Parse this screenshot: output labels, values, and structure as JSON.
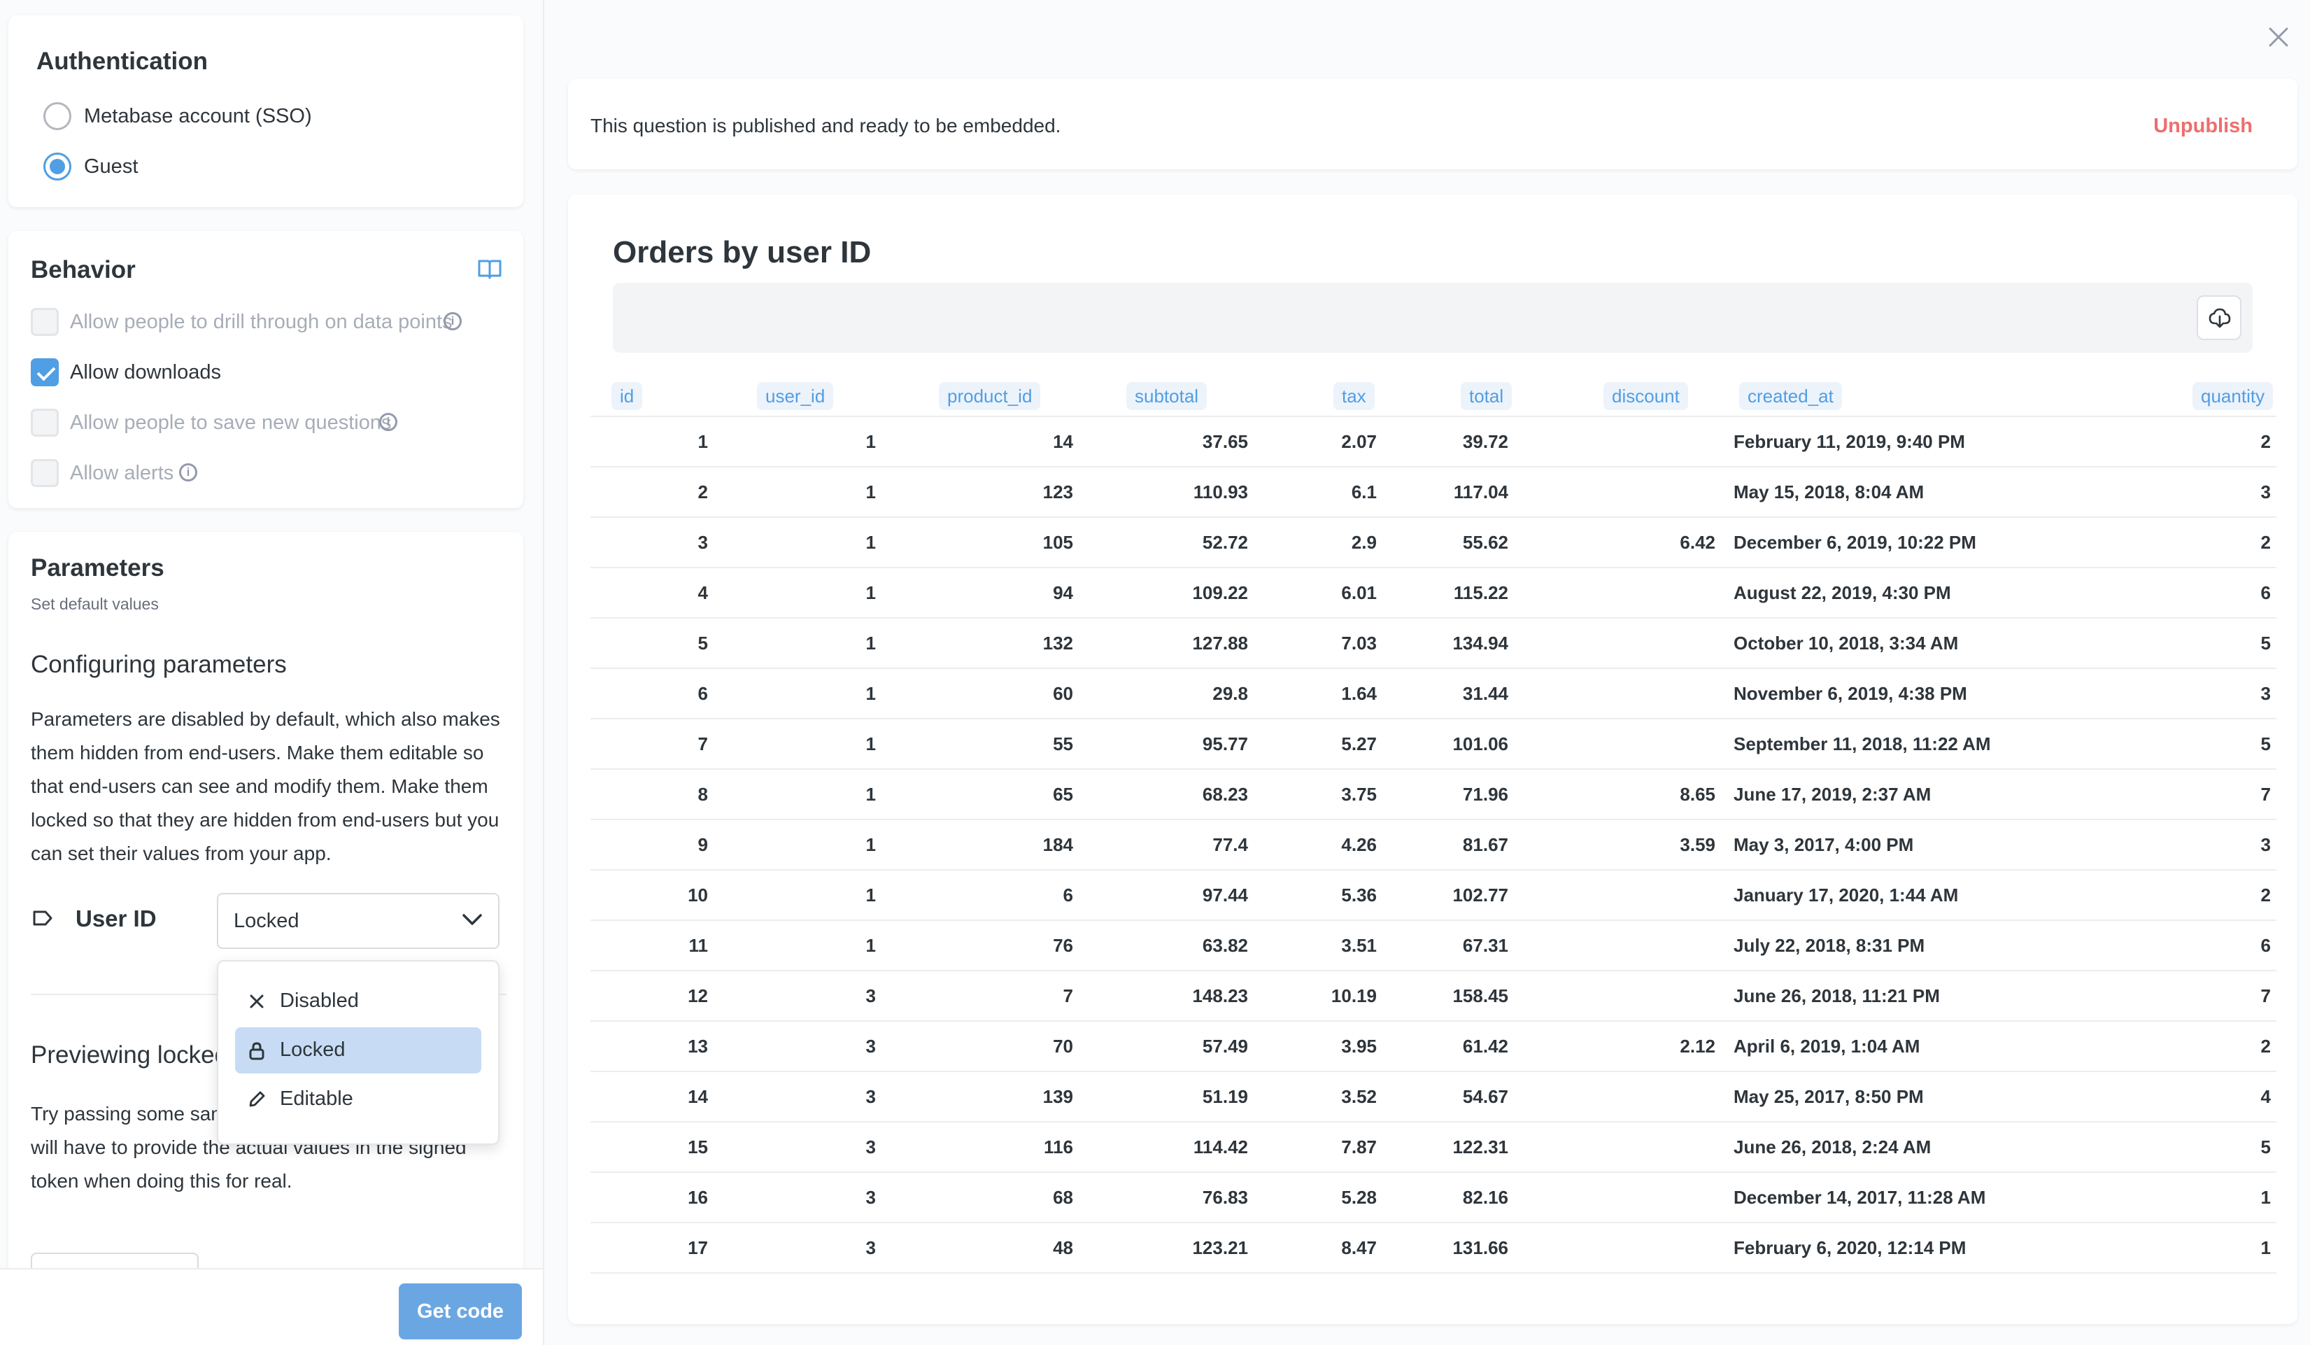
{
  "sidebar": {
    "authentication": {
      "title": "Authentication",
      "options": [
        {
          "label": "Metabase account (SSO)",
          "selected": false
        },
        {
          "label": "Guest",
          "selected": true
        }
      ]
    },
    "behavior": {
      "title": "Behavior",
      "options": [
        {
          "label": "Allow people to drill through on data points",
          "checked": false,
          "disabled": true
        },
        {
          "label": "Allow downloads",
          "checked": true,
          "disabled": false
        },
        {
          "label": "Allow people to save new questions",
          "checked": false,
          "disabled": true
        },
        {
          "label": "Allow alerts",
          "checked": false,
          "disabled": true
        }
      ]
    },
    "parameters": {
      "title": "Parameters",
      "subtitle": "Set default values",
      "configuring_heading": "Configuring parameters",
      "configuring_text": "Parameters are disabled by default, which also makes them hidden from end-users. Make them editable so that end-users can see and modify them. Make them locked so that they are hidden from end-users but you can set their values from your app.",
      "param_name": "User ID",
      "param_value": "Locked",
      "dropdown_options": [
        {
          "label": "Disabled",
          "icon": "close-icon",
          "selected": false
        },
        {
          "label": "Locked",
          "icon": "lock-icon",
          "selected": true
        },
        {
          "label": "Editable",
          "icon": "pencil-icon",
          "selected": false
        }
      ],
      "previewing_heading": "Previewing locked",
      "previewing_text": "Try passing some samp parameters here. Your server will have to provide the actual values in the signed token when doing this for real."
    },
    "footer": {
      "get_code_label": "Get code"
    }
  },
  "publish_bar": {
    "text": "This question is published and ready to be embedded.",
    "unpublish_label": "Unpublish"
  },
  "preview": {
    "title": "Orders by user ID",
    "columns": [
      "id",
      "user_id",
      "product_id",
      "subtotal",
      "tax",
      "total",
      "discount",
      "created_at",
      "quantity"
    ],
    "rows": [
      [
        "1",
        "1",
        "14",
        "37.65",
        "2.07",
        "39.72",
        "",
        "February 11, 2019, 9:40 PM",
        "2"
      ],
      [
        "2",
        "1",
        "123",
        "110.93",
        "6.1",
        "117.04",
        "",
        "May 15, 2018, 8:04 AM",
        "3"
      ],
      [
        "3",
        "1",
        "105",
        "52.72",
        "2.9",
        "55.62",
        "6.42",
        "December 6, 2019, 10:22 PM",
        "2"
      ],
      [
        "4",
        "1",
        "94",
        "109.22",
        "6.01",
        "115.22",
        "",
        "August 22, 2019, 4:30 PM",
        "6"
      ],
      [
        "5",
        "1",
        "132",
        "127.88",
        "7.03",
        "134.94",
        "",
        "October 10, 2018, 3:34 AM",
        "5"
      ],
      [
        "6",
        "1",
        "60",
        "29.8",
        "1.64",
        "31.44",
        "",
        "November 6, 2019, 4:38 PM",
        "3"
      ],
      [
        "7",
        "1",
        "55",
        "95.77",
        "5.27",
        "101.06",
        "",
        "September 11, 2018, 11:22 AM",
        "5"
      ],
      [
        "8",
        "1",
        "65",
        "68.23",
        "3.75",
        "71.96",
        "8.65",
        "June 17, 2019, 2:37 AM",
        "7"
      ],
      [
        "9",
        "1",
        "184",
        "77.4",
        "4.26",
        "81.67",
        "3.59",
        "May 3, 2017, 4:00 PM",
        "3"
      ],
      [
        "10",
        "1",
        "6",
        "97.44",
        "5.36",
        "102.77",
        "",
        "January 17, 2020, 1:44 AM",
        "2"
      ],
      [
        "11",
        "1",
        "76",
        "63.82",
        "3.51",
        "67.31",
        "",
        "July 22, 2018, 8:31 PM",
        "6"
      ],
      [
        "12",
        "3",
        "7",
        "148.23",
        "10.19",
        "158.45",
        "",
        "June 26, 2018, 11:21 PM",
        "7"
      ],
      [
        "13",
        "3",
        "70",
        "57.49",
        "3.95",
        "61.42",
        "2.12",
        "April 6, 2019, 1:04 AM",
        "2"
      ],
      [
        "14",
        "3",
        "139",
        "51.19",
        "3.52",
        "54.67",
        "",
        "May 25, 2017, 8:50 PM",
        "4"
      ],
      [
        "15",
        "3",
        "116",
        "114.42",
        "7.87",
        "122.31",
        "",
        "June 26, 2018, 2:24 AM",
        "5"
      ],
      [
        "16",
        "3",
        "68",
        "76.83",
        "5.28",
        "82.16",
        "",
        "December 14, 2017, 11:28 AM",
        "1"
      ],
      [
        "17",
        "3",
        "48",
        "123.21",
        "8.47",
        "131.66",
        "",
        "February 6, 2020, 12:14 PM",
        "1"
      ]
    ]
  },
  "colors": {
    "brand": "#509ee3",
    "danger": "#ed6e6e",
    "text_dark": "#2e353b",
    "text_disabled": "#a7adb6"
  }
}
